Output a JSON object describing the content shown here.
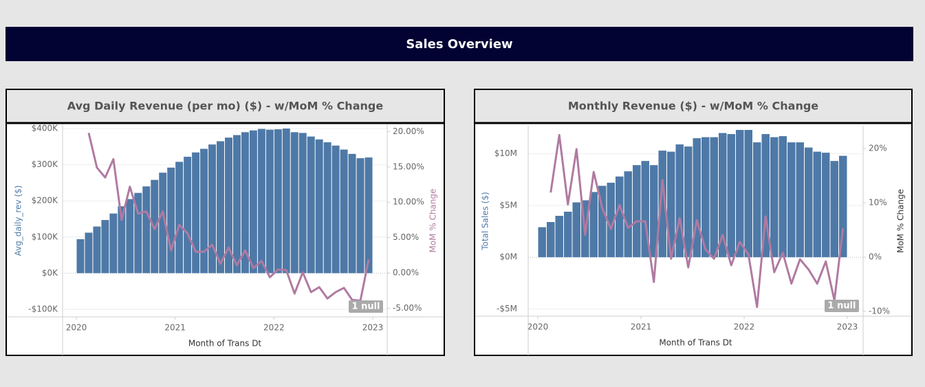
{
  "title": "Sales Overview",
  "chart_data": [
    {
      "type": "combo",
      "title": "Avg Daily Revenue (per mo) ($) - w/MoM % Change",
      "x": [
        "2020-01",
        "2020-02",
        "2020-03",
        "2020-04",
        "2020-05",
        "2020-06",
        "2020-07",
        "2020-08",
        "2020-09",
        "2020-10",
        "2020-11",
        "2020-12",
        "2021-01",
        "2021-02",
        "2021-03",
        "2021-04",
        "2021-05",
        "2021-06",
        "2021-07",
        "2021-08",
        "2021-09",
        "2021-10",
        "2021-11",
        "2021-12",
        "2022-01",
        "2022-02",
        "2022-03",
        "2022-04",
        "2022-05",
        "2022-06",
        "2022-07",
        "2022-08",
        "2022-09",
        "2022-10",
        "2022-11",
        "2022-12"
      ],
      "xlim": [
        "2020-01",
        "2023-01"
      ],
      "xticks": [
        {
          "value": "2020-01",
          "label": "2020"
        },
        {
          "value": "2021-01",
          "label": "2021"
        },
        {
          "value": "2022-01",
          "label": "2022"
        },
        {
          "value": "2023-01",
          "label": "2023"
        }
      ],
      "xlabel": "Month of Trans Dt",
      "ylabel": "Avg_daily_rev ($)",
      "y2label": "MoM % Change",
      "ylim": [
        -121000,
        411500
      ],
      "yticks": [
        {
          "value": -100000,
          "label": "-$100K"
        },
        {
          "value": 0,
          "label": "$0K"
        },
        {
          "value": 100000,
          "label": "$100K"
        },
        {
          "value": 200000,
          "label": "$200K"
        },
        {
          "value": 300000,
          "label": "$300K"
        },
        {
          "value": 400000,
          "label": "$400K"
        }
      ],
      "y2lim": [
        -6.2,
        21
      ],
      "y2ticks": [
        {
          "value": -5,
          "label": "-5.00%"
        },
        {
          "value": 0,
          "label": "0.00%"
        },
        {
          "value": 5,
          "label": "5.00%"
        },
        {
          "value": 10,
          "label": "10.00%"
        },
        {
          "value": 15,
          "label": "15.00%"
        },
        {
          "value": 20,
          "label": "20.00%"
        }
      ],
      "series": [
        {
          "type": "bar",
          "color": "#4e79a7",
          "values": [
            94000,
            112000,
            129000,
            147000,
            165000,
            185000,
            205000,
            222000,
            240000,
            258000,
            278000,
            292000,
            308000,
            322000,
            334000,
            344000,
            356000,
            365000,
            375000,
            382000,
            390000,
            395000,
            399000,
            397000,
            398000,
            400000,
            390000,
            388000,
            378000,
            370000,
            362000,
            353000,
            342000,
            330000,
            318000,
            320000
          ]
        },
        {
          "type": "line",
          "axis": "y2",
          "color": "#b07aa1",
          "values": [
            null,
            19.8,
            14.9,
            13.5,
            16.1,
            7.5,
            12.2,
            8.4,
            8.7,
            6.2,
            8.7,
            3.2,
            6.8,
            5.6,
            3.0,
            3.0,
            4.0,
            1.3,
            3.6,
            1.1,
            3.2,
            0.7,
            1.7,
            -0.6,
            0.5,
            0.4,
            -2.9,
            0.1,
            -2.7,
            -2.0,
            -3.6,
            -2.7,
            -2.1,
            -3.8,
            -3.9,
            1.9
          ]
        }
      ],
      "annotation": "1 null"
    },
    {
      "type": "combo",
      "title": "Monthly Revenue ($) - w/MoM % Change",
      "x": [
        "2020-01",
        "2020-02",
        "2020-03",
        "2020-04",
        "2020-05",
        "2020-06",
        "2020-07",
        "2020-08",
        "2020-09",
        "2020-10",
        "2020-11",
        "2020-12",
        "2021-01",
        "2021-02",
        "2021-03",
        "2021-04",
        "2021-05",
        "2021-06",
        "2021-07",
        "2021-08",
        "2021-09",
        "2021-10",
        "2021-11",
        "2021-12",
        "2022-01",
        "2022-02",
        "2022-03",
        "2022-04",
        "2022-05",
        "2022-06",
        "2022-07",
        "2022-08",
        "2022-09",
        "2022-10",
        "2022-11",
        "2022-12"
      ],
      "xlim": [
        "2020-01",
        "2023-01"
      ],
      "xticks": [
        {
          "value": "2020-01",
          "label": "2020"
        },
        {
          "value": "2021-01",
          "label": "2021"
        },
        {
          "value": "2022-01",
          "label": "2022"
        },
        {
          "value": "2023-01",
          "label": "2023"
        }
      ],
      "xlabel": "Month of Trans Dt",
      "ylabel": "Total Sales ($)",
      "y2label": "MoM % Change",
      "ylim": [
        -5700000,
        12700000
      ],
      "yticks": [
        {
          "value": -5000000,
          "label": "-$5M"
        },
        {
          "value": 0,
          "label": "$0M"
        },
        {
          "value": 5000000,
          "label": "$5M"
        },
        {
          "value": 10000000,
          "label": "$10M"
        }
      ],
      "y2lim": [
        -10.9,
        24.2
      ],
      "y2ticks": [
        {
          "value": -10,
          "label": "-10%"
        },
        {
          "value": 0,
          "label": "0%"
        },
        {
          "value": 10,
          "label": "10%"
        },
        {
          "value": 20,
          "label": "20%"
        }
      ],
      "series": [
        {
          "type": "bar",
          "color": "#4e79a7",
          "values": [
            2900000,
            3400000,
            4000000,
            4400000,
            5300000,
            5500000,
            6300000,
            6900000,
            7200000,
            7800000,
            8300000,
            8900000,
            9300000,
            8900000,
            10300000,
            10200000,
            10900000,
            10700000,
            11500000,
            11600000,
            11600000,
            12000000,
            11900000,
            12300000,
            12300000,
            11100000,
            11900000,
            11600000,
            11700000,
            11100000,
            11100000,
            10600000,
            10200000,
            10100000,
            9300000,
            9800000
          ]
        },
        {
          "type": "line",
          "axis": "y2",
          "color": "#b07aa1",
          "values": [
            null,
            11.9,
            22.5,
            9.7,
            19.9,
            4.1,
            15.7,
            9.0,
            5.2,
            9.6,
            5.4,
            6.6,
            6.6,
            -4.6,
            14.2,
            -0.3,
            7.2,
            -1.9,
            6.8,
            1.4,
            -0.3,
            4.1,
            -1.5,
            2.8,
            0.5,
            -9.2,
            7.5,
            -2.8,
            0.8,
            -4.9,
            -0.4,
            -2.3,
            -4.9,
            -0.8,
            -8.0,
            5.3
          ]
        }
      ],
      "annotation": "1 null"
    }
  ]
}
